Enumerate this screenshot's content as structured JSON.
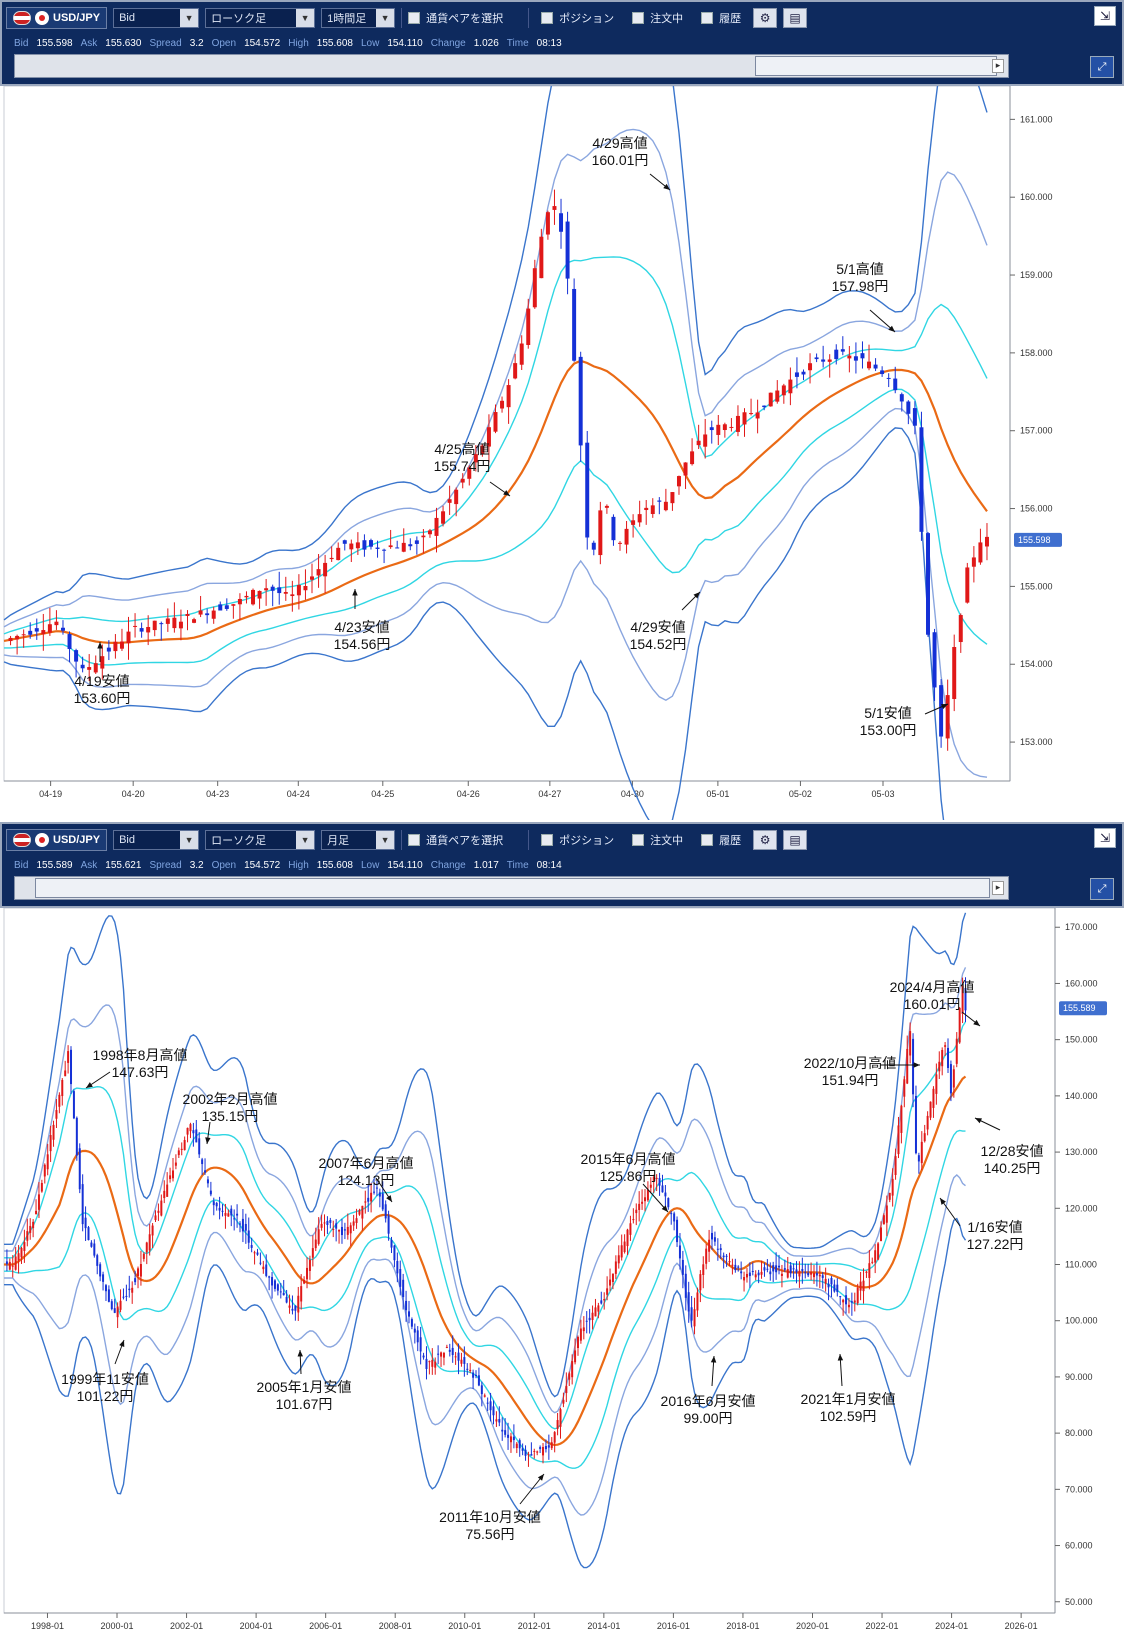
{
  "panel1": {
    "pair": "USD/JPY",
    "price_type": "Bid",
    "chart_type": "ローソク足",
    "timeframe": "1時間足",
    "pair_select": "通貨ペアを選択",
    "toggles": [
      "ポジション",
      "注文中",
      "履歴"
    ],
    "quote": {
      "bid_label": "Bid",
      "bid": "155.598",
      "ask_label": "Ask",
      "ask": "155.630",
      "spread_label": "Spread",
      "spread": "3.2",
      "open_label": "Open",
      "open": "154.572",
      "high_label": "High",
      "high": "155.608",
      "low_label": "Low",
      "low": "154.110",
      "change_label": "Change",
      "change": "1.026",
      "time_label": "Time",
      "time": "08:13"
    },
    "current_price_tag": "155.598"
  },
  "panel2": {
    "pair": "USD/JPY",
    "price_type": "Bid",
    "chart_type": "ローソク足",
    "timeframe": "月足",
    "pair_select": "通貨ペアを選択",
    "toggles": [
      "ポジション",
      "注文中",
      "履歴"
    ],
    "quote": {
      "bid_label": "Bid",
      "bid": "155.589",
      "ask_label": "Ask",
      "ask": "155.621",
      "spread_label": "Spread",
      "spread": "3.2",
      "open_label": "Open",
      "open": "154.572",
      "high_label": "High",
      "high": "155.608",
      "low_label": "Low",
      "low": "154.110",
      "change_label": "Change",
      "change": "1.017",
      "time_label": "Time",
      "time": "08:14"
    },
    "current_price_tag": "155.589"
  },
  "chart_data": [
    {
      "type": "candlestick",
      "title": "",
      "timeframe": "1時間足",
      "x_ticks": [
        "04-19",
        "04-20",
        "04-23",
        "04-24",
        "04-25",
        "04-26",
        "04-27",
        "04-30",
        "05-01",
        "05-02",
        "05-03"
      ],
      "y_ticks": [
        "153.000",
        "154.000",
        "155.000",
        "156.000",
        "157.000",
        "158.000",
        "159.000",
        "160.000",
        "161.000"
      ],
      "ylim": [
        152.5,
        161.3
      ],
      "indicators": [
        "moving average (orange)",
        "bollinger bands"
      ],
      "close_path": [
        [
          0,
          154.3
        ],
        [
          4,
          154.55
        ],
        [
          6,
          153.9
        ],
        [
          10,
          154.45
        ],
        [
          14,
          154.6
        ],
        [
          18,
          154.8
        ],
        [
          20,
          155.0
        ],
        [
          22,
          154.85
        ],
        [
          26,
          155.55
        ],
        [
          28,
          155.5
        ],
        [
          32,
          155.55
        ],
        [
          35,
          156.3
        ],
        [
          37,
          156.9
        ],
        [
          39,
          157.7
        ],
        [
          40,
          158.3
        ],
        [
          41,
          159.3
        ],
        [
          42,
          160.01
        ],
        [
          43,
          159.5
        ],
        [
          44,
          157.5
        ],
        [
          45,
          155.2
        ],
        [
          46,
          156.2
        ],
        [
          47,
          155.5
        ],
        [
          49,
          156.0
        ],
        [
          51,
          156.1
        ],
        [
          52,
          156.5
        ],
        [
          54,
          157.0
        ],
        [
          56,
          157.1
        ],
        [
          58,
          157.3
        ],
        [
          60,
          157.6
        ],
        [
          62,
          157.85
        ],
        [
          64,
          157.98
        ],
        [
          66,
          157.9
        ],
        [
          68,
          157.7
        ],
        [
          69,
          157.4
        ],
        [
          70,
          157.0
        ],
        [
          71,
          154.3
        ],
        [
          72,
          153.0
        ],
        [
          73,
          154.2
        ],
        [
          74,
          155.2
        ],
        [
          75,
          155.598
        ]
      ],
      "annotations": [
        {
          "label": "4/19安値",
          "value": "153.60円"
        },
        {
          "label": "4/23安値",
          "value": "154.56円"
        },
        {
          "label": "4/25高値",
          "value": "155.74円"
        },
        {
          "label": "4/29高値",
          "value": "160.01円"
        },
        {
          "label": "4/29安値",
          "value": "154.52円"
        },
        {
          "label": "5/1高値",
          "value": "157.98円"
        },
        {
          "label": "5/1安値",
          "value": "153.00円"
        }
      ]
    },
    {
      "type": "candlestick",
      "title": "",
      "timeframe": "月足",
      "x_ticks": [
        "1998-01",
        "2000-01",
        "2002-01",
        "2004-01",
        "2006-01",
        "2008-01",
        "2010-01",
        "2012-01",
        "2014-01",
        "2016-01",
        "2018-01",
        "2020-01",
        "2022-01",
        "2024-01",
        "2026-01"
      ],
      "y_ticks": [
        "50.000",
        "60.000",
        "70.000",
        "80.000",
        "90.000",
        "100.000",
        "110.000",
        "120.000",
        "130.000",
        "140.000",
        "150.000",
        "160.000",
        "170.000"
      ],
      "ylim": [
        48,
        172
      ],
      "indicators": [
        "moving average (orange)",
        "bollinger bands"
      ],
      "close_path": [
        [
          1997.0,
          110
        ],
        [
          1997.6,
          118
        ],
        [
          1998.6,
          147.63
        ],
        [
          1999.0,
          118
        ],
        [
          1999.9,
          101.22
        ],
        [
          2000.5,
          107
        ],
        [
          2001.2,
          120
        ],
        [
          2002.1,
          135.15
        ],
        [
          2002.8,
          120
        ],
        [
          2003.5,
          118
        ],
        [
          2004.3,
          108
        ],
        [
          2005.1,
          101.67
        ],
        [
          2005.9,
          118
        ],
        [
          2006.5,
          115
        ],
        [
          2007.5,
          124.13
        ],
        [
          2008.3,
          102
        ],
        [
          2008.9,
          92
        ],
        [
          2009.5,
          95
        ],
        [
          2010.3,
          90
        ],
        [
          2010.9,
          82
        ],
        [
          2011.8,
          75.56
        ],
        [
          2012.5,
          78
        ],
        [
          2013.3,
          98
        ],
        [
          2014.0,
          104
        ],
        [
          2014.8,
          118
        ],
        [
          2015.5,
          125.86
        ],
        [
          2016.0,
          118
        ],
        [
          2016.5,
          99.0
        ],
        [
          2017.0,
          115
        ],
        [
          2018.0,
          108
        ],
        [
          2019.0,
          109
        ],
        [
          2020.2,
          108
        ],
        [
          2021.1,
          102.59
        ],
        [
          2021.8,
          112
        ],
        [
          2022.3,
          125
        ],
        [
          2022.8,
          151.94
        ],
        [
          2023.0,
          127.22
        ],
        [
          2023.8,
          150
        ],
        [
          2023.99,
          140.25
        ],
        [
          2024.3,
          160.01
        ],
        [
          2024.4,
          155.589
        ]
      ],
      "annotations": [
        {
          "label": "1998年8月高値",
          "value": "147.63円"
        },
        {
          "label": "1999年11安値",
          "value": "101.22円"
        },
        {
          "label": "2002年2月高値",
          "value": "135.15円"
        },
        {
          "label": "2005年1月安値",
          "value": "101.67円"
        },
        {
          "label": "2007年6月高値",
          "value": "124.13円"
        },
        {
          "label": "2011年10月安値",
          "value": "75.56円"
        },
        {
          "label": "2015年6月高値",
          "value": "125.86円"
        },
        {
          "label": "2016年6月安値",
          "value": "99.00円"
        },
        {
          "label": "2021年1月安値",
          "value": "102.59円"
        },
        {
          "label": "2022/10月高値",
          "value": "151.94円"
        },
        {
          "label": "1/16安値",
          "value": "127.22円"
        },
        {
          "label": "12/28安値",
          "value": "140.25円"
        },
        {
          "label": "2024/4月高値",
          "value": "160.01円"
        }
      ]
    }
  ]
}
